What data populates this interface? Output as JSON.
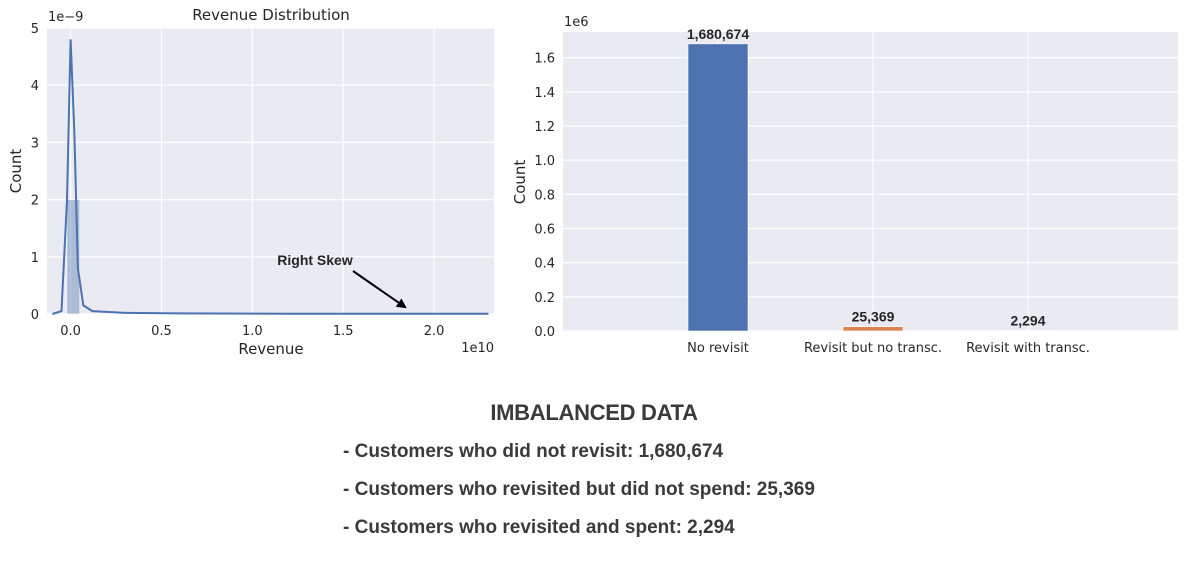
{
  "chart_data": [
    {
      "type": "histogram",
      "title": "Revenue Distribution",
      "xlabel": "Revenue",
      "ylabel": "Count",
      "x_exponent_label": "1e10",
      "y_exponent_label": "1e−9",
      "xlim": [
        -0.13,
        2.33
      ],
      "ylim": [
        0,
        5
      ],
      "x_ticks": [
        0.0,
        0.5,
        1.0,
        1.5,
        2.0
      ],
      "y_ticks": [
        0,
        1,
        2,
        3,
        4,
        5
      ],
      "bins": [
        {
          "x0": -0.02,
          "x1": 0.05,
          "height": 2.0
        }
      ],
      "kde": [
        [
          -0.1,
          0
        ],
        [
          -0.05,
          0.05
        ],
        [
          -0.02,
          2.0
        ],
        [
          0.0,
          4.8
        ],
        [
          0.02,
          3.2
        ],
        [
          0.04,
          0.8
        ],
        [
          0.07,
          0.15
        ],
        [
          0.12,
          0.05
        ],
        [
          0.3,
          0.02
        ],
        [
          0.6,
          0.01
        ],
        [
          1.2,
          0.005
        ],
        [
          2.3,
          0.003
        ]
      ],
      "annotation": {
        "text": "Right Skew",
        "arrow_to": [
          1.85,
          0.1
        ]
      },
      "color": "#4c72b0",
      "grid": true
    },
    {
      "type": "bar",
      "ylabel": "Count",
      "y_exponent_label": "1e6",
      "categories": [
        "No revisit",
        "Revisit but no transc.",
        "Revisit with transc."
      ],
      "values": [
        1680674,
        25369,
        2294
      ],
      "value_labels": [
        "1,680,674",
        "25,369",
        "2,294"
      ],
      "colors": [
        "#4c72b0",
        "#dd8452",
        "#55a868"
      ],
      "ylim": [
        0,
        1.75
      ],
      "y_ticks": [
        0.0,
        0.2,
        0.4,
        0.6,
        0.8,
        1.0,
        1.2,
        1.4,
        1.6
      ],
      "grid": true
    }
  ],
  "summary": {
    "title": "IMBALANCED DATA",
    "lines": [
      "- Customers who did not revisit: 1,680,674",
      "- Customers who revisited but did not spend: 25,369",
      "- Customers who revisited and spent: 2,294"
    ]
  }
}
